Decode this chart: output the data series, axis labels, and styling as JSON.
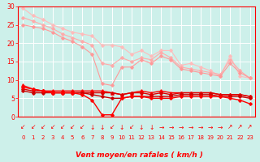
{
  "xlabel": "Vent moyen/en rafales ( km/h )",
  "xlim": [
    -0.5,
    23.5
  ],
  "ylim": [
    0,
    30
  ],
  "yticks": [
    0,
    5,
    10,
    15,
    20,
    25,
    30
  ],
  "xticks": [
    0,
    1,
    2,
    3,
    4,
    5,
    6,
    7,
    8,
    9,
    10,
    11,
    12,
    13,
    14,
    15,
    16,
    17,
    18,
    19,
    20,
    21,
    22,
    23
  ],
  "background_color": "#cdf0ea",
  "grid_color": "#ffffff",
  "series": [
    {
      "x": [
        0,
        1,
        2,
        3,
        4,
        5,
        6,
        7,
        8,
        9,
        10,
        11,
        12,
        13,
        14,
        15,
        16,
        17,
        18,
        19,
        20,
        21,
        22,
        23
      ],
      "y": [
        29.5,
        27.5,
        26.5,
        25.0,
        24.0,
        23.0,
        22.5,
        22.0,
        19.5,
        19.5,
        19.0,
        17.0,
        18.0,
        16.5,
        18.0,
        18.0,
        14.0,
        14.5,
        13.5,
        12.5,
        11.0,
        16.5,
        11.0,
        10.5
      ],
      "color": "#ffbbbb",
      "marker": "D",
      "markersize": 1.8,
      "linewidth": 0.8
    },
    {
      "x": [
        0,
        1,
        2,
        3,
        4,
        5,
        6,
        7,
        8,
        9,
        10,
        11,
        12,
        13,
        14,
        15,
        16,
        17,
        18,
        19,
        20,
        21,
        22,
        23
      ],
      "y": [
        27.0,
        26.0,
        25.0,
        24.0,
        22.5,
        21.5,
        20.5,
        19.5,
        14.5,
        14.0,
        16.0,
        15.0,
        16.0,
        15.5,
        17.5,
        16.0,
        13.5,
        13.0,
        12.5,
        12.0,
        11.5,
        15.5,
        12.5,
        10.5
      ],
      "color": "#ffaaaa",
      "marker": "D",
      "markersize": 1.8,
      "linewidth": 0.8
    },
    {
      "x": [
        0,
        1,
        2,
        3,
        4,
        5,
        6,
        7,
        8,
        9,
        10,
        11,
        12,
        13,
        14,
        15,
        16,
        17,
        18,
        19,
        20,
        21,
        22,
        23
      ],
      "y": [
        25.0,
        24.5,
        24.0,
        23.0,
        21.5,
        20.5,
        19.0,
        17.0,
        9.0,
        8.5,
        13.5,
        13.5,
        15.5,
        14.5,
        16.5,
        15.5,
        13.0,
        12.5,
        12.0,
        11.5,
        11.0,
        14.5,
        12.0,
        10.5
      ],
      "color": "#ff9999",
      "marker": "D",
      "markersize": 1.8,
      "linewidth": 0.8
    },
    {
      "x": [
        0,
        1,
        2,
        3,
        4,
        5,
        6,
        7,
        8,
        9,
        10,
        11,
        12,
        13,
        14,
        15,
        16,
        17,
        18,
        19,
        20,
        21,
        22,
        23
      ],
      "y": [
        8.5,
        7.5,
        7.0,
        7.0,
        7.0,
        7.0,
        7.0,
        7.0,
        7.0,
        6.5,
        6.0,
        6.5,
        7.0,
        6.5,
        7.0,
        6.5,
        6.5,
        6.5,
        6.5,
        6.5,
        6.0,
        6.0,
        6.0,
        5.5
      ],
      "color": "#ff0000",
      "marker": "^",
      "markersize": 2.5,
      "linewidth": 1.0
    },
    {
      "x": [
        0,
        1,
        2,
        3,
        4,
        5,
        6,
        7,
        8,
        9,
        10,
        11,
        12,
        13,
        14,
        15,
        16,
        17,
        18,
        19,
        20,
        21,
        22,
        23
      ],
      "y": [
        7.5,
        7.0,
        7.0,
        6.5,
        6.5,
        6.5,
        6.5,
        6.5,
        6.5,
        6.5,
        6.0,
        6.5,
        6.5,
        6.0,
        6.5,
        6.0,
        6.5,
        6.5,
        6.5,
        6.5,
        6.0,
        6.0,
        6.0,
        5.5
      ],
      "color": "#dd0000",
      "marker": "D",
      "markersize": 1.8,
      "linewidth": 1.0
    },
    {
      "x": [
        0,
        1,
        2,
        3,
        4,
        5,
        6,
        7,
        8,
        9,
        10,
        11,
        12,
        13,
        14,
        15,
        16,
        17,
        18,
        19,
        20,
        21,
        22,
        23
      ],
      "y": [
        7.0,
        6.5,
        6.5,
        6.5,
        6.5,
        6.5,
        6.5,
        6.0,
        5.5,
        5.0,
        5.0,
        5.5,
        5.5,
        5.5,
        5.5,
        5.5,
        6.0,
        6.0,
        6.0,
        6.0,
        5.5,
        5.5,
        5.5,
        5.0
      ],
      "color": "#cc0000",
      "marker": "D",
      "markersize": 1.8,
      "linewidth": 1.0
    },
    {
      "x": [
        0,
        1,
        2,
        3,
        4,
        5,
        6,
        7,
        8,
        9,
        10,
        11,
        12,
        13,
        14,
        15,
        16,
        17,
        18,
        19,
        20,
        21,
        22,
        23
      ],
      "y": [
        8.0,
        7.5,
        7.0,
        6.5,
        6.5,
        6.5,
        6.0,
        4.5,
        0.5,
        0.5,
        5.0,
        5.5,
        5.5,
        5.0,
        5.0,
        5.0,
        5.5,
        5.5,
        5.5,
        5.5,
        5.5,
        5.0,
        4.5,
        3.5
      ],
      "color": "#ff0000",
      "marker": "D",
      "markersize": 1.8,
      "linewidth": 1.0
    }
  ],
  "arrows": [
    "↙",
    "↙",
    "↙",
    "↙",
    "↙",
    "↙",
    "↙",
    "↓",
    "↓",
    "↙",
    "↓",
    "↙",
    "↓",
    "↓",
    "→",
    "→",
    "→",
    "→",
    "→",
    "→",
    "→",
    "↗",
    "↗",
    "↗"
  ],
  "arrow_color": "#ff0000",
  "xlabel_fontsize": 6.5,
  "tick_fontsize": 5.5,
  "tick_color": "#ff0000",
  "xlabel_color": "#ff0000",
  "axis_color": "#ff0000"
}
